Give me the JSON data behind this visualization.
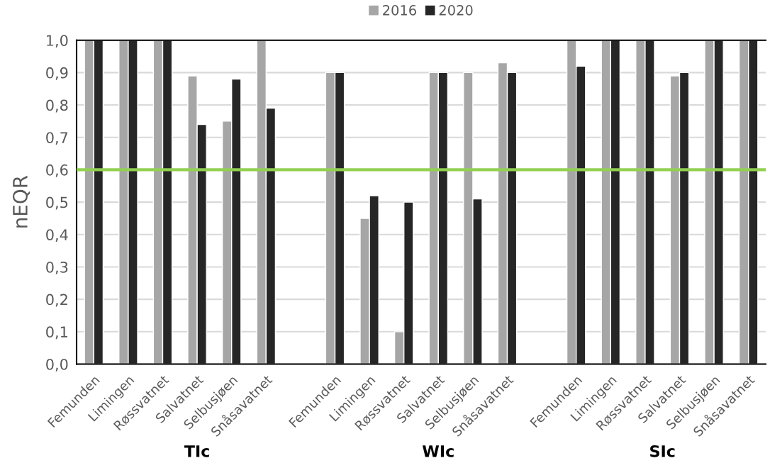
{
  "chart_data": {
    "type": "bar",
    "ylabel": "nEQR",
    "categories": [
      "Femunden",
      "Limingen",
      "Røssvatnet",
      "Salvatnet",
      "Selbusjøen",
      "Snåsavatnet",
      null,
      "Femunden",
      "Limingen",
      "Røssvatnet",
      "Salvatnet",
      "Selbusjøen",
      "Snåsavatnet",
      null,
      "Femunden",
      "Limingen",
      "Røssvatnet",
      "Salvatnet",
      "Selbusjøen",
      "Snåsavatnet"
    ],
    "series": [
      {
        "name": "2016",
        "color": "#a6a6a6",
        "values": [
          1.0,
          1.0,
          1.0,
          0.89,
          0.75,
          1.0,
          null,
          0.9,
          0.45,
          0.1,
          0.9,
          0.9,
          0.93,
          null,
          1.0,
          1.0,
          1.0,
          0.89,
          1.0,
          1.0
        ]
      },
      {
        "name": "2020",
        "color": "#262626",
        "values": [
          1.0,
          1.0,
          1.0,
          0.74,
          0.88,
          0.79,
          null,
          0.9,
          0.52,
          0.5,
          0.9,
          0.51,
          0.9,
          null,
          0.92,
          1.0,
          1.0,
          0.9,
          1.0,
          1.0
        ]
      }
    ],
    "ylim": [
      0,
      1.0
    ],
    "yticks": [
      {
        "value": 0,
        "label": "0,0"
      },
      {
        "value": 0.1,
        "label": "0,1"
      },
      {
        "value": 0.2,
        "label": "0,2"
      },
      {
        "value": 0.3,
        "label": "0,3"
      },
      {
        "value": 0.4,
        "label": "0,4"
      },
      {
        "value": 0.5,
        "label": "0,5"
      },
      {
        "value": 0.6,
        "label": "0,6"
      },
      {
        "value": 0.7,
        "label": "0,7"
      },
      {
        "value": 0.8,
        "label": "0,8"
      },
      {
        "value": 0.9,
        "label": "0,9"
      },
      {
        "value": 1.0,
        "label": "1,0"
      }
    ],
    "ref_lines": [
      {
        "axis": "y",
        "value": 0.6,
        "color": "#92d050"
      }
    ],
    "annotations": [
      "TIc",
      "WIc",
      "SIc"
    ],
    "grid": "y",
    "legend": "top"
  }
}
